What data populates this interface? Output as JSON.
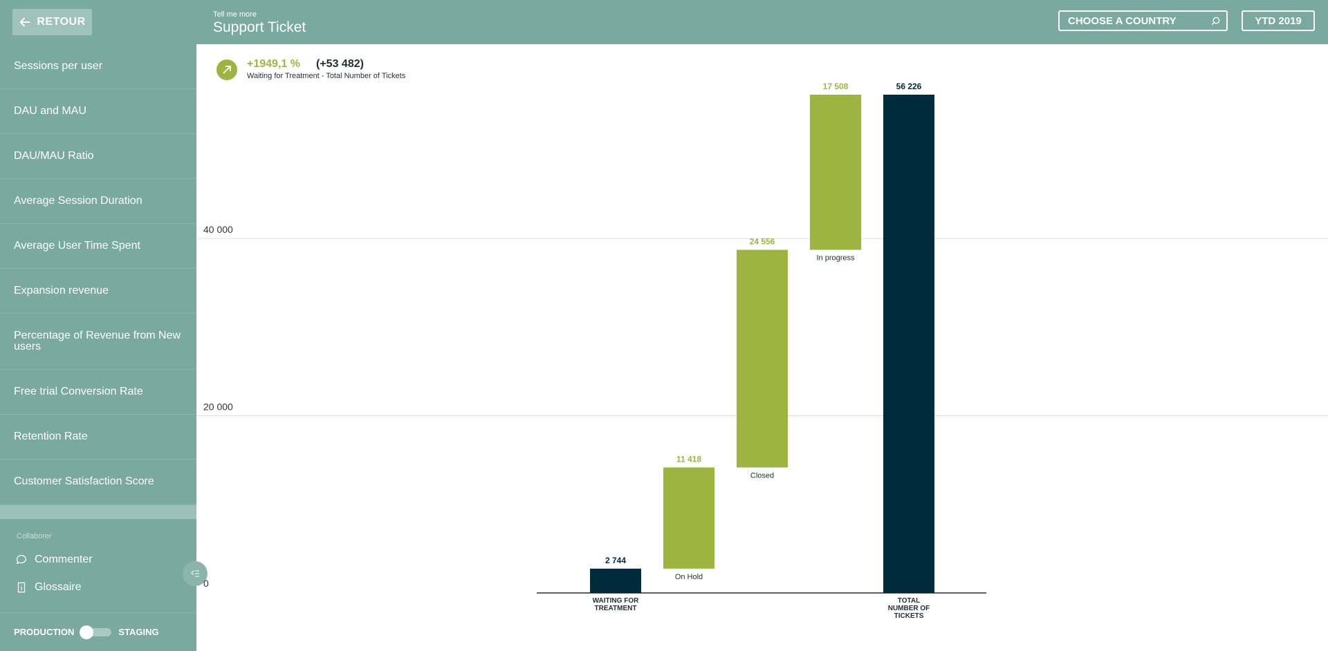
{
  "sidebar": {
    "back_label": "RETOUR",
    "items": [
      {
        "label": "Sessions per user"
      },
      {
        "label": "DAU and MAU"
      },
      {
        "label": "DAU/MAU Ratio"
      },
      {
        "label": "Average Session Duration"
      },
      {
        "label": "Average User Time Spent"
      },
      {
        "label": "Expansion revenue"
      },
      {
        "label": "Percentage of Revenue from New users"
      },
      {
        "label": "Free trial Conversion Rate"
      },
      {
        "label": "Retention Rate"
      },
      {
        "label": "Customer Satisfaction Score"
      }
    ],
    "collab_label": "Collaborer",
    "comment_label": "Commenter",
    "glossary_label": "Glossaire",
    "env_left": "PRODUCTION",
    "env_right": "STAGING"
  },
  "header": {
    "subtitle": "Tell me more",
    "title": "Support Ticket",
    "country_placeholder": "CHOOSE A COUNTRY",
    "period_label": "YTD 2019"
  },
  "kpi": {
    "percent": "+1949,1 %",
    "absolute": "(+53 482)",
    "description": "Waiting for Treatment - Total Number of Tickets"
  },
  "colors": {
    "sidebar": "#79a99f",
    "accent_green": "#9db441",
    "dark_navy": "#002b3d"
  },
  "chart_data": {
    "type": "bar",
    "subtype": "waterfall",
    "yticks": [
      {
        "value": 0,
        "label": "0"
      },
      {
        "value": 20000,
        "label": "20 000"
      },
      {
        "value": 40000,
        "label": "40 000"
      }
    ],
    "steps": [
      {
        "name": "WAITING FOR TREATMENT",
        "value": 2744,
        "value_label": "2 744",
        "kind": "total"
      },
      {
        "name": "On Hold",
        "value": 11418,
        "value_label": "11 418",
        "kind": "increase"
      },
      {
        "name": "Closed",
        "value": 24556,
        "value_label": "24 556",
        "kind": "increase"
      },
      {
        "name": "In progress",
        "value": 17508,
        "value_label": "17 508",
        "kind": "increase"
      },
      {
        "name": "TOTAL NUMBER OF TICKETS",
        "value": 56226,
        "value_label": "56 226",
        "kind": "total"
      }
    ]
  }
}
